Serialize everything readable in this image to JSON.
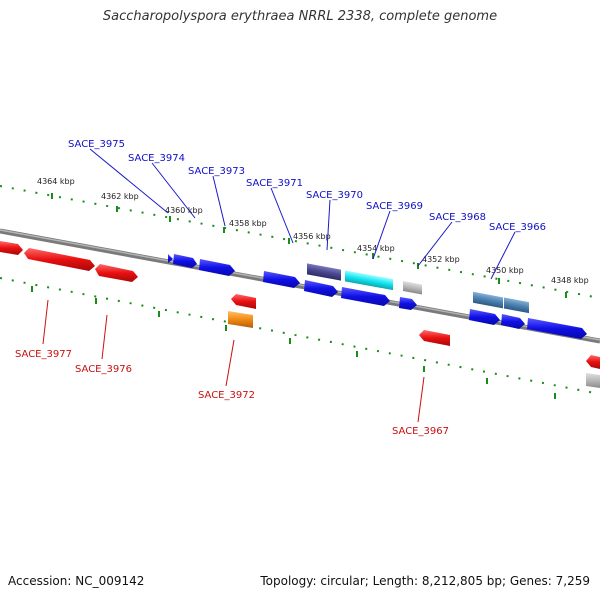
{
  "title": "Saccharopolyspora erythraea NRRL 2338, complete genome",
  "footer": {
    "accession": "Accession: NC_009142",
    "summary": "Topology: circular; Length: 8,212,805 bp; Genes: 7,259"
  },
  "colors": {
    "backbone": "#808080",
    "ruler": "#1a8c1a",
    "forward_gene": "#0a0ae6",
    "reverse_gene": "#e60a0a",
    "forward_label": "#1010c8",
    "reverse_label": "#c81010"
  },
  "ruler_ticks": [
    "4364 kbp",
    "4362 kbp",
    "4360 kbp",
    "4358 kbp",
    "4356 kbp",
    "4354 kbp",
    "4352 kbp",
    "4350 kbp",
    "4348 kbp"
  ],
  "forward_labels": [
    "SACE_3975",
    "SACE_3974",
    "SACE_3973",
    "SACE_3971",
    "SACE_3970",
    "SACE_3969",
    "SACE_3968",
    "SACE_3966"
  ],
  "reverse_labels": [
    "SACE_3977",
    "SACE_3976",
    "SACE_3972",
    "SACE_3967"
  ],
  "features": {
    "forward_track_1": [
      "blue",
      "blue",
      "blue",
      "purple",
      "cyan",
      "grey",
      "steelblue",
      "steelblue"
    ],
    "forward_track_2": [
      "blue",
      "blue",
      "blue",
      "blue",
      "blue",
      "blue",
      "blue"
    ],
    "reverse_track_1": [
      "red",
      "red",
      "red",
      "red",
      "red",
      "red"
    ],
    "reverse_track_2": [
      "orange",
      "grey"
    ]
  }
}
